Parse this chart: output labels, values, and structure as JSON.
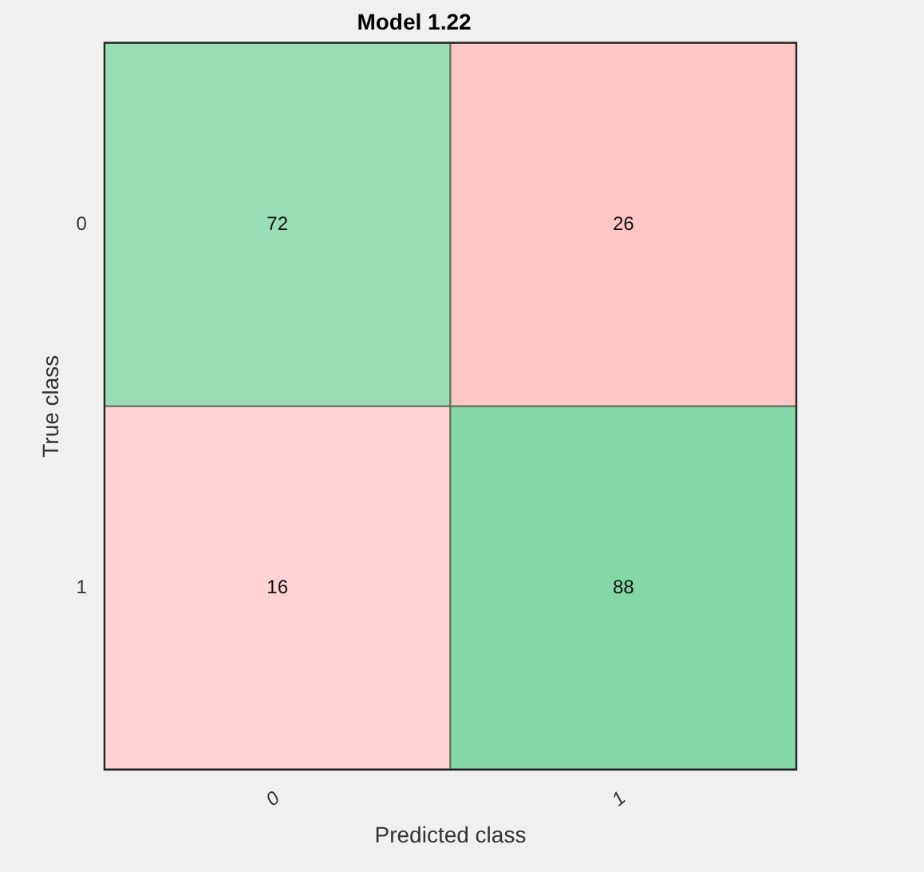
{
  "chart_data": {
    "type": "heatmap",
    "title": "Model 1.22",
    "xlabel": "Predicted class",
    "ylabel": "True class",
    "categories": [
      "0",
      "1"
    ],
    "y_categories": [
      "0",
      "1"
    ],
    "cells": [
      [
        72,
        26
      ],
      [
        16,
        88
      ]
    ],
    "colors": [
      "#98ddb5",
      "#ffc6c6",
      "#ffd2d4",
      "#84d8a8"
    ],
    "data_labels": true
  }
}
